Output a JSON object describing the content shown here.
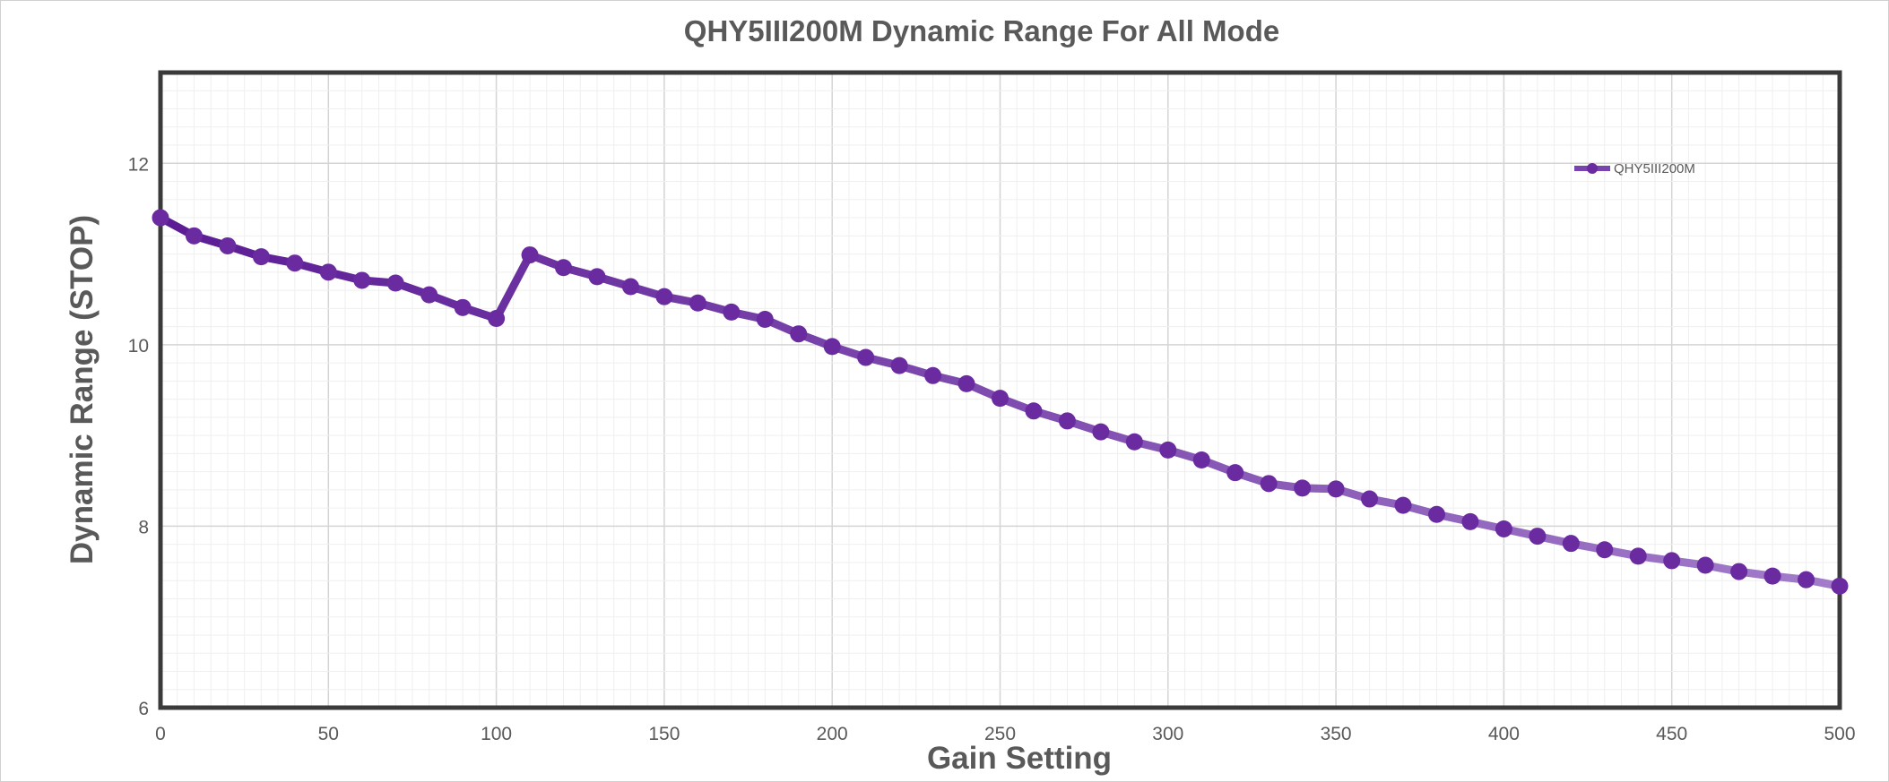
{
  "chart_data": {
    "type": "line",
    "title": "QHY5III200M Dynamic Range For All Mode",
    "xlabel": "Gain Setting",
    "ylabel": "Dynamic Range (STOP)",
    "xlim": [
      0,
      500
    ],
    "ylim": [
      6,
      13
    ],
    "xticks": [
      "0",
      "50",
      "100",
      "150",
      "200",
      "250",
      "300",
      "350",
      "400",
      "450",
      "500"
    ],
    "yticks": [
      "6",
      "8",
      "10",
      "12"
    ],
    "grid": true,
    "legend_position": "top-right",
    "colors": {
      "line_start": "#5b1c94",
      "line_end": "#a27cca",
      "marker": "#6a2aa0"
    },
    "series": [
      {
        "name": "QHY5III200M",
        "x": [
          0,
          10,
          20,
          30,
          40,
          50,
          60,
          70,
          80,
          90,
          100,
          110,
          120,
          130,
          140,
          150,
          160,
          170,
          180,
          190,
          200,
          210,
          220,
          230,
          240,
          250,
          260,
          270,
          280,
          290,
          300,
          310,
          320,
          330,
          340,
          350,
          360,
          370,
          380,
          390,
          400,
          410,
          420,
          430,
          440,
          450,
          460,
          470,
          480,
          490,
          500
        ],
        "values": [
          11.4,
          11.2,
          11.09,
          10.97,
          10.9,
          10.8,
          10.71,
          10.68,
          10.55,
          10.41,
          10.29,
          10.99,
          10.85,
          10.75,
          10.64,
          10.53,
          10.46,
          10.36,
          10.28,
          10.12,
          9.98,
          9.86,
          9.77,
          9.66,
          9.57,
          9.41,
          9.27,
          9.16,
          9.04,
          8.93,
          8.84,
          8.73,
          8.59,
          8.47,
          8.42,
          8.41,
          8.3,
          8.23,
          8.13,
          8.05,
          7.97,
          7.89,
          7.81,
          7.74,
          7.67,
          7.62,
          7.57,
          7.5,
          7.45,
          7.41,
          7.34
        ]
      }
    ]
  }
}
